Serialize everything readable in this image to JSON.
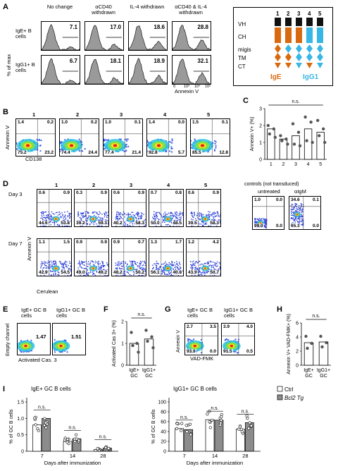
{
  "panelA": {
    "label": "A",
    "columns": [
      "No change",
      "αCD40 withdrawn",
      "IL-4 withdrawn",
      "αCD40 & IL-4 withdrawn"
    ],
    "rows": [
      {
        "name": "IgE+ B cells",
        "values": [
          "7.1",
          "17.0",
          "18.6",
          "28.8"
        ]
      },
      {
        "name": "IgG1+ B cells",
        "values": [
          "6.7",
          "18.1",
          "18.9",
          "32.1"
        ]
      }
    ],
    "ylabel": "% of max",
    "xlabel": "Annexin V",
    "x_ticks": [
      "0",
      "10³",
      "10⁴",
      "10⁵"
    ]
  },
  "construct": {
    "numbers": [
      "1",
      "2",
      "3",
      "4",
      "5"
    ],
    "row_labels": [
      "VH",
      "CH",
      "migis",
      "TM",
      "CT"
    ],
    "ige_label": "IgE",
    "igg1_label": "IgG1",
    "colors": {
      "ige": "#d9690f",
      "igg1": "#38b6e6",
      "vh": "#111111"
    }
  },
  "panelB": {
    "label": "B",
    "plots": [
      {
        "n": "1",
        "q": [
          "1.4",
          "0.2",
          "75.2",
          "23.2"
        ]
      },
      {
        "n": "2",
        "q": [
          "1.0",
          "0.2",
          "74.4",
          "24.4"
        ]
      },
      {
        "n": "3",
        "q": [
          "1.0",
          "0.1",
          "77.4",
          "21.4"
        ]
      },
      {
        "n": "4",
        "q": [
          "1.4",
          "0.0",
          "92.8",
          "5.7"
        ]
      },
      {
        "n": "5",
        "q": [
          "1.5",
          "0.1",
          "85.5",
          "12.8"
        ]
      }
    ],
    "ylabel": "Annexin V",
    "xlabel": "CD138"
  },
  "panelC": {
    "label": "C",
    "ylabel": "Annexin V+ (%)",
    "sig": "n.s.",
    "chart_data": {
      "type": "bar",
      "categories": [
        "1",
        "2",
        "3",
        "4",
        "5"
      ],
      "values": [
        1.8,
        1.2,
        1.4,
        1.8,
        1.6
      ],
      "points": [
        [
          2.0,
          1.8,
          1.5,
          1.3
        ],
        [
          1.4,
          1.2,
          1.1,
          0.9
        ],
        [
          2.1,
          1.6,
          0.9,
          0.8
        ],
        [
          2.5,
          2.2,
          1.1,
          1.0
        ],
        [
          2.3,
          1.8,
          1.4,
          1.0
        ]
      ],
      "ylim": [
        0,
        3
      ],
      "yticks": [
        "0",
        "1",
        "2",
        "3"
      ]
    }
  },
  "panelD": {
    "label": "D",
    "numbers": [
      "1",
      "2",
      "3",
      "4",
      "5"
    ],
    "days": [
      "Day 3",
      "Day 7"
    ],
    "day3": [
      [
        "0.6",
        "0.9",
        "44.6",
        "53.8"
      ],
      [
        "0.3",
        "0.9",
        "39.2",
        "59.3"
      ],
      [
        "0.6",
        "0.9",
        "40.2",
        "58.3"
      ],
      [
        "0.7",
        "0.8",
        "50.0",
        "48.5"
      ],
      [
        "0.6",
        "0.9",
        "39.5",
        "58.3"
      ]
    ],
    "day7": [
      [
        "1.1",
        "1.5",
        "42.9",
        "54.5"
      ],
      [
        "0.9",
        "0.9",
        "49.0",
        "49.2"
      ],
      [
        "0.9",
        "0.7",
        "48.2",
        "50.2"
      ],
      [
        "1.3",
        "1.7",
        "56.1",
        "40.8"
      ],
      [
        "1.2",
        "4.2",
        "43.9",
        "50.7"
      ]
    ],
    "controls_title": "controls (not transduced)",
    "controls": [
      {
        "name": "untreated",
        "q": [
          "1.0",
          "0.0",
          "99.0",
          "0.0"
        ]
      },
      {
        "name": "αIgM",
        "q": [
          "34.6",
          "0.1",
          "65.3",
          "0.0"
        ]
      }
    ],
    "ylabel": "Annexin V",
    "xlabel": "Cerulean"
  },
  "panelE": {
    "label": "E",
    "plots": [
      {
        "title": "IgE+ GC B cells",
        "value": "1.47"
      },
      {
        "title": "IgG1+ GC B cells",
        "value": "1.51"
      }
    ],
    "ylabel": "Empty channel",
    "xlabel": "Activated Cas. 3"
  },
  "panelF": {
    "label": "F",
    "ylabel": "Activated Cas 3+ (%)",
    "sig": "n.s.",
    "chart_data": {
      "type": "bar",
      "categories": [
        "IgE+ GC",
        "IgG1+ GC"
      ],
      "values": [
        1.0,
        1.2
      ],
      "points": [
        [
          1.5,
          1.0,
          0.9,
          0.6
        ],
        [
          1.6,
          1.3,
          1.1,
          0.8
        ]
      ],
      "ylim": [
        0,
        2
      ],
      "yticks": [
        "0",
        "1",
        "2"
      ]
    }
  },
  "panelG": {
    "label": "G",
    "plots": [
      {
        "title": "IgE+ GC B cells",
        "q": [
          "2.7",
          "3.5",
          "93.9",
          "0.0"
        ]
      },
      {
        "title": "IgG1+ GC B cells",
        "q": [
          "3.9",
          "4.0",
          "91.5",
          "0.5"
        ]
      }
    ],
    "ylabel": "Annexin V",
    "xlabel": "VAD-FMK"
  },
  "panelH": {
    "label": "H",
    "ylabel": "Annexin V+ VAD-FMK+ (%)",
    "sig": "n.s.",
    "chart_data": {
      "type": "bar",
      "categories": [
        "IgE+ GC",
        "IgG1+ GC"
      ],
      "values": [
        3.2,
        3.3
      ],
      "points": [
        [
          4.1,
          3.1,
          2.4
        ],
        [
          4.1,
          3.2,
          2.6
        ]
      ],
      "ylim": [
        0,
        6
      ],
      "yticks": [
        "0",
        "2",
        "4",
        "6"
      ]
    }
  },
  "panelI": {
    "label": "I",
    "legend": [
      "Ctrl",
      "Bcl2 Tg"
    ],
    "left_title": "IgE+ GC B cells",
    "right_title": "IgG1+ GC B cells",
    "ylabel": "% of GC B cells",
    "xlabel": "Days after immunization",
    "sig": "n.s.",
    "chart_data": [
      {
        "type": "bar",
        "title": "IgE+ GC B cells",
        "categories": [
          "7",
          "14",
          "28"
        ],
        "series": [
          {
            "name": "Ctrl",
            "values": [
              0.8,
              0.3,
              0.05
            ]
          },
          {
            "name": "Bcl2 Tg",
            "values": [
              1.0,
              0.38,
              0.1
            ]
          }
        ],
        "ylim": [
          0,
          1.5
        ],
        "yticks": [
          "0",
          "0.5",
          "1.0",
          "1.5"
        ]
      },
      {
        "type": "bar",
        "title": "IgG1+ GC B cells",
        "categories": [
          "7",
          "14",
          "28"
        ],
        "series": [
          {
            "name": "Ctrl",
            "values": [
              46,
              64,
              45
            ]
          },
          {
            "name": "Bcl2 Tg",
            "values": [
              44,
              63,
              58
            ]
          }
        ],
        "ylim": [
          0,
          100
        ],
        "yticks": [
          "0",
          "20",
          "40",
          "60",
          "80",
          "100"
        ]
      }
    ]
  }
}
